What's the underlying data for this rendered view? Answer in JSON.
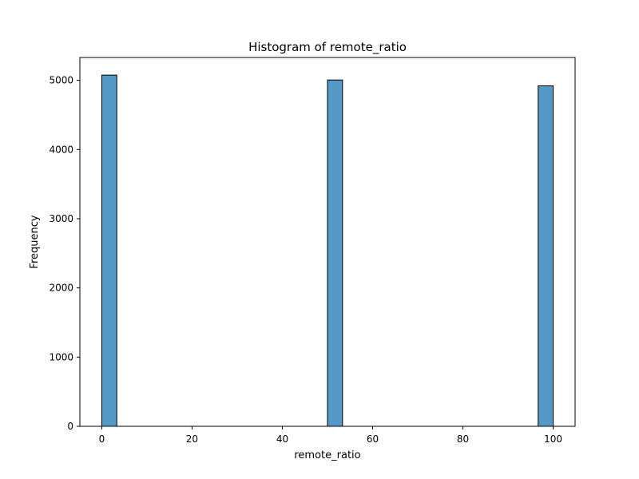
{
  "chart_data": {
    "type": "bar",
    "title": "Histogram of remote_ratio",
    "xlabel": "remote_ratio",
    "ylabel": "Frequency",
    "xlim": [
      -4.85,
      104.85
    ],
    "ylim": [
      0,
      5330
    ],
    "xticks": [
      0,
      20,
      40,
      60,
      80,
      100
    ],
    "yticks": [
      0,
      1000,
      2000,
      3000,
      4000,
      5000
    ],
    "bar_color": "#5698c6",
    "edge_color": "#000000",
    "grid": false,
    "bins": [
      {
        "x0": 0,
        "x1": 3.33,
        "count": 5075
      },
      {
        "x0": 50,
        "x1": 53.33,
        "count": 5005
      },
      {
        "x0": 96.67,
        "x1": 100,
        "count": 4920
      }
    ]
  }
}
